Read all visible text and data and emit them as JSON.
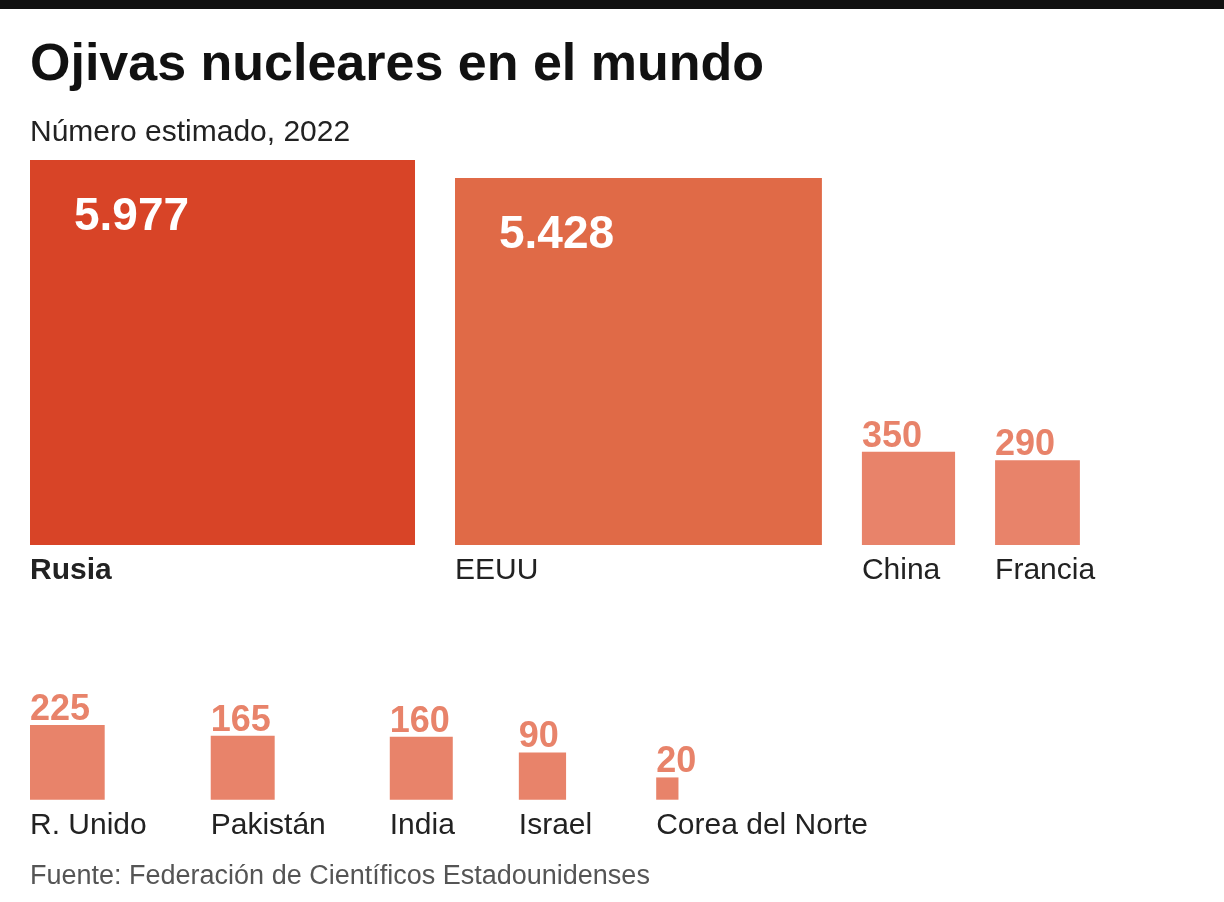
{
  "chart_data": {
    "type": "other",
    "title": "Ojivas nucleares en el mundo",
    "subtitle": "Número estimado, 2022",
    "categories": [
      "Rusia",
      "EEUU",
      "China",
      "Francia",
      "R. Unido",
      "Pakistán",
      "India",
      "Israel",
      "Corea del Norte"
    ],
    "values": [
      5977,
      5428,
      350,
      290,
      225,
      165,
      160,
      90,
      20
    ],
    "value_labels": [
      "5.977",
      "5.428",
      "350",
      "290",
      "225",
      "165",
      "160",
      "90",
      "20"
    ],
    "colors": [
      "#d84427",
      "#e06a47",
      "#e8836a",
      "#e8836a",
      "#e8836a",
      "#e8836a",
      "#e8836a",
      "#e8836a",
      "#e8836a"
    ],
    "annotations": [
      "Fuente: Federación de Científicos Estadounidenses"
    ]
  }
}
